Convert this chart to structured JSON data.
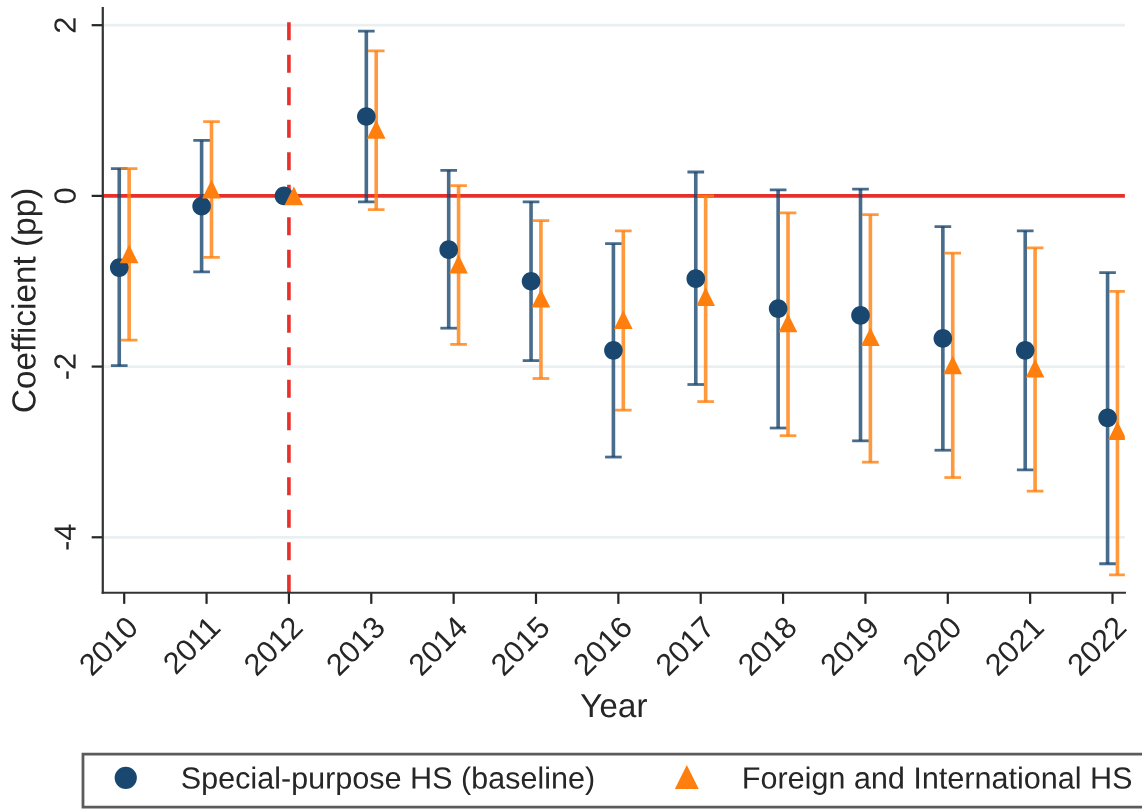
{
  "chart_data": {
    "type": "scatter",
    "xlabel": "Year",
    "ylabel": "Coefficient (pp)",
    "xlim": [
      2009.74,
      2022.15
    ],
    "xticks": [
      2010,
      2011,
      2012,
      2013,
      2014,
      2015,
      2016,
      2017,
      2018,
      2019,
      2020,
      2021,
      2022
    ],
    "ylim": [
      -4.65,
      2.2
    ],
    "yticks": [
      -4,
      -2,
      0,
      2
    ],
    "grid": "y",
    "legend": "bottom",
    "ref_lines": [
      {
        "axis": "y",
        "value": 0,
        "color": "#e8302a",
        "line_style": "solid"
      },
      {
        "axis": "x",
        "value": 2012,
        "color": "#e8302a",
        "line_style": "dashed"
      }
    ],
    "series": [
      {
        "name": "Special-purpose HS (baseline)",
        "color": "#1a476f",
        "marker": "circle",
        "x": [
          2009.94,
          2010.94,
          2011.94,
          2012.94,
          2013.94,
          2014.94,
          2015.94,
          2016.94,
          2017.94,
          2018.94,
          2019.94,
          2020.94,
          2021.94
        ],
        "values": [
          -0.84,
          -0.12,
          0,
          0.93,
          -0.63,
          -1.0,
          -1.81,
          -0.97,
          -1.32,
          -1.4,
          -1.67,
          -1.81,
          -2.6
        ],
        "errors": [
          [
            -1.99,
            0.32
          ],
          [
            -0.89,
            0.65
          ],
          null,
          [
            -0.07,
            1.93
          ],
          [
            -1.55,
            0.3
          ],
          [
            -1.93,
            -0.07
          ],
          [
            -3.06,
            -0.56
          ],
          [
            -2.21,
            0.28
          ],
          [
            -2.72,
            0.07
          ],
          [
            -2.87,
            0.08
          ],
          [
            -2.98,
            -0.36
          ],
          [
            -3.21,
            -0.41
          ],
          [
            -4.31,
            -0.9
          ]
        ]
      },
      {
        "name": "Foreign and International HS",
        "color": "#ff7f0e",
        "marker": "triangle",
        "x": [
          2010.06,
          2011.06,
          2012.06,
          2013.06,
          2014.06,
          2015.06,
          2016.06,
          2017.06,
          2018.06,
          2019.06,
          2020.06,
          2021.06,
          2022.06
        ],
        "values": [
          -0.68,
          0.08,
          0,
          0.78,
          -0.8,
          -1.2,
          -1.45,
          -1.18,
          -1.49,
          -1.65,
          -1.98,
          -2.02,
          -2.75
        ],
        "errors": [
          [
            -1.69,
            0.32
          ],
          [
            -0.72,
            0.87
          ],
          null,
          [
            -0.16,
            1.7
          ],
          [
            -1.74,
            0.12
          ],
          [
            -2.14,
            -0.29
          ],
          [
            -2.51,
            -0.41
          ],
          [
            -2.41,
            0.0
          ],
          [
            -2.81,
            -0.2
          ],
          [
            -3.12,
            -0.22
          ],
          [
            -3.3,
            -0.67
          ],
          [
            -3.46,
            -0.61
          ],
          [
            -4.44,
            -1.12
          ]
        ]
      }
    ]
  }
}
